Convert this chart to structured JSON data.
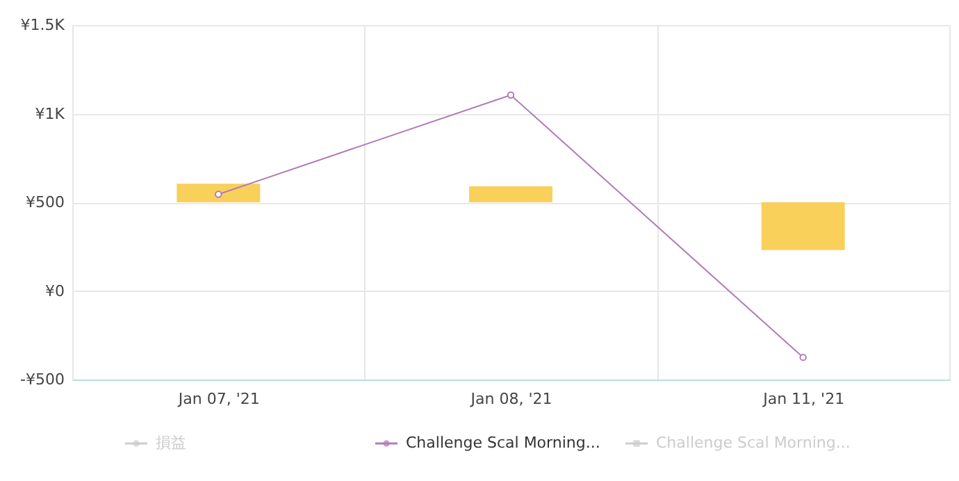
{
  "chart_data": {
    "type": "bar",
    "categories": [
      "Jan 07, '21",
      "Jan 08, '21",
      "Jan 11, '21"
    ],
    "ylim": [
      -500,
      1500
    ],
    "yticks": [
      {
        "value": -500,
        "label": "-¥500"
      },
      {
        "value": 0,
        "label": "¥0"
      },
      {
        "value": 500,
        "label": "¥500"
      },
      {
        "value": 1000,
        "label": "¥1K"
      },
      {
        "value": 1500,
        "label": "¥1.5K"
      }
    ],
    "grid": true,
    "legend": "bottom",
    "series": [
      {
        "name": "損益",
        "type": "line",
        "color": "#cccccc",
        "values": [
          null,
          null,
          null
        ]
      },
      {
        "name": "Challenge Scal Morning...",
        "type": "line",
        "color": "#b27cb6",
        "marker": "circle",
        "values": [
          545,
          1105,
          -375
        ]
      },
      {
        "name": "Challenge Scal Morning...",
        "color": "#cccccc",
        "values": [
          null,
          null,
          null
        ]
      },
      {
        "color": "#f8d05a",
        "base": [
          500,
          500,
          500
        ],
        "values": [
          105,
          90,
          -270
        ]
      }
    ]
  }
}
